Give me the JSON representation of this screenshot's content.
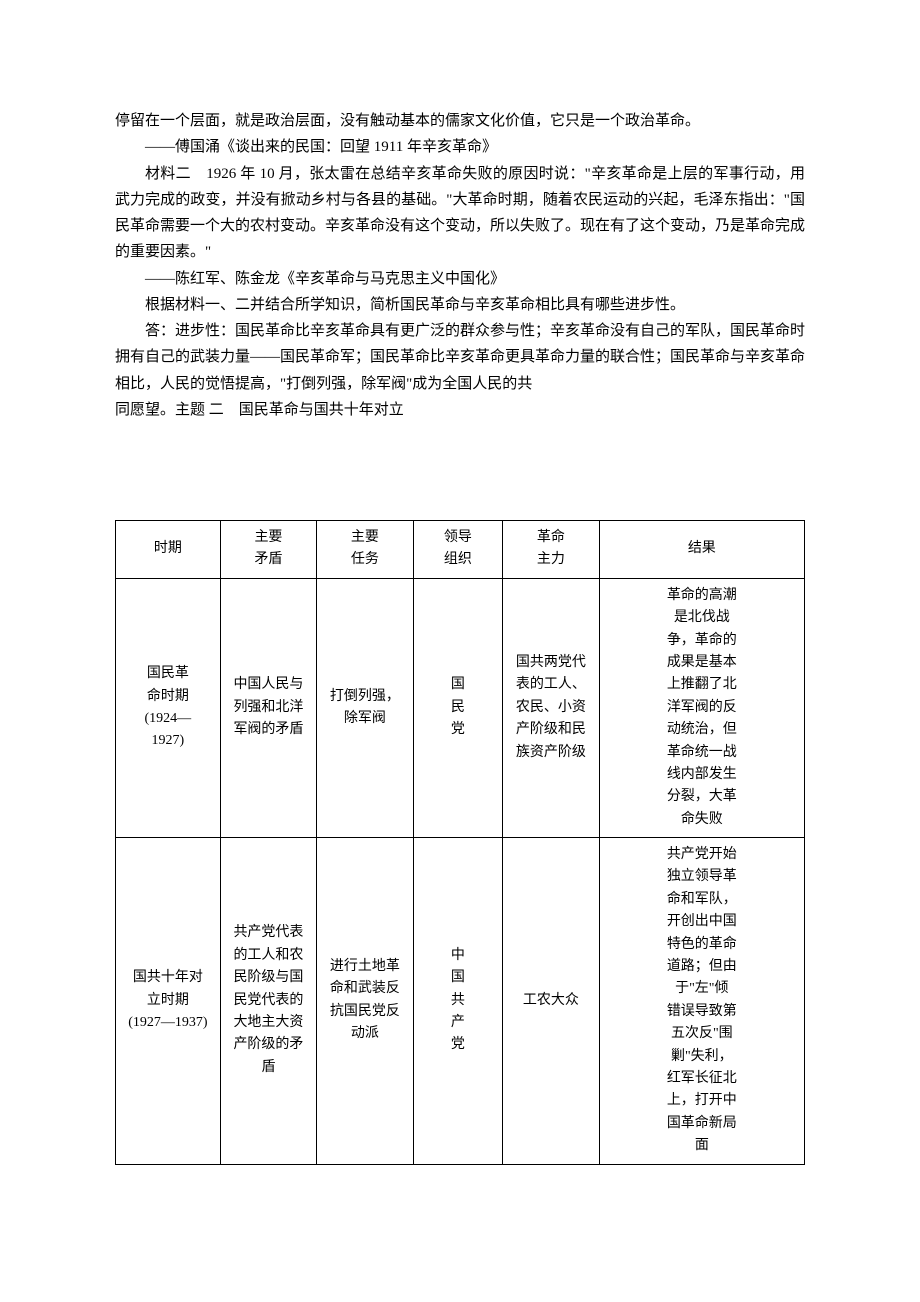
{
  "body": {
    "p1": "停留在一个层面，就是政治层面，没有触动基本的儒家文化价值，它只是一个政治革命。",
    "cite1": "——傅国涌《谈出来的民国：回望 1911 年辛亥革命》",
    "p2": "材料二　1926 年 10 月，张太雷在总结辛亥革命失败的原因时说：\"辛亥革命是上层的军事行动，用武力完成的政变，并没有掀动乡村与各县的基础。\"大革命时期，随着农民运动的兴起，毛泽东指出：\"国民革命需要一个大的农村变动。辛亥革命没有这个变动，所以失败了。现在有了这个变动，乃是革命完成的重要因素。\"",
    "cite2": "——陈红军、陈金龙《辛亥革命与马克思主义中国化》",
    "p3": "根据材料一、二并结合所学知识，简析国民革命与辛亥革命相比具有哪些进步性。",
    "p4": "答：进步性：国民革命比辛亥革命具有更广泛的群众参与性；辛亥革命没有自己的军队，国民革命时拥有自己的武装力量——国民革命军；国民革命比辛亥革命更具革命力量的联合性；国民革命与辛亥革命相比，人民的觉悟提高，\"打倒列强，除军阀\"成为全国人民的共",
    "p5a": "同愿望。",
    "p5b": "主题 二　国民革命与国共十年对立"
  },
  "table": {
    "headers": {
      "h0": "时期",
      "h1": "主要\n矛盾",
      "h2": "主要\n任务",
      "h3": "领导\n组织",
      "h4": "革命\n主力",
      "h5": "结果"
    },
    "rows": [
      {
        "c0": "国民革\n命时期\n(1924—\n1927)",
        "c1": "中国人民与\n列强和北洋\n军阀的矛盾",
        "c2": "打倒列强，\n除军阀",
        "c3": "国\n民\n党",
        "c4": "国共两党代\n表的工人、\n农民、小资\n产阶级和民\n族资产阶级",
        "c5": "革命的高潮\n是北伐战\n争，革命的\n成果是基本\n上推翻了北\n洋军阀的反\n动统治，但\n革命统一战\n线内部发生\n分裂，大革\n命失败"
      },
      {
        "c0": "国共十年对\n立时期\n(1927—1937)",
        "c1": "共产党代表\n的工人和农\n民阶级与国\n民党代表的\n大地主大资\n产阶级的矛\n盾",
        "c2": "进行土地革\n命和武装反\n抗国民党反\n动派",
        "c3": "中\n国\n共\n产\n党",
        "c4": "工农大众",
        "c5": "共产党开始\n独立领导革\n命和军队，\n开创出中国\n特色的革命\n道路；但由\n于\"左\"倾\n错误导致第\n五次反\"围\n剿\"失利，\n红军长征北\n上，打开中\n国革命新局\n面"
      }
    ]
  }
}
